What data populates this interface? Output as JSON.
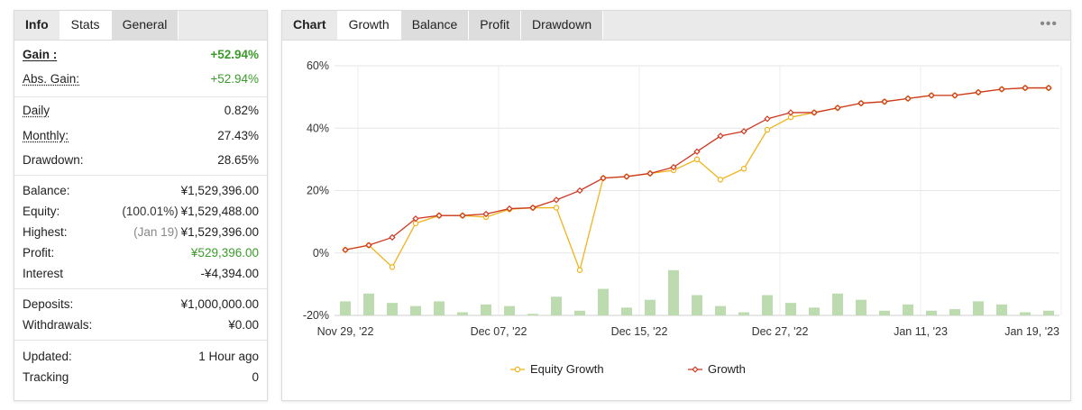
{
  "left_panel": {
    "tabs": [
      "Info",
      "Stats",
      "General"
    ],
    "rows": [
      {
        "label": "Gain :",
        "value": "+52.94%"
      },
      {
        "label": "Abs. Gain:",
        "value": "+52.94%"
      },
      {
        "label": "Daily",
        "value": "0.82%"
      },
      {
        "label": "Monthly:",
        "value": "27.43%"
      },
      {
        "label": "Drawdown:",
        "value": "28.65%"
      },
      {
        "label": "Balance:",
        "value": "¥1,529,396.00"
      },
      {
        "label": "Equity:",
        "sub": "(100.01%)",
        "value": "¥1,529,488.00"
      },
      {
        "label": "Highest:",
        "sub": "(Jan 19)",
        "value": "¥1,529,396.00"
      },
      {
        "label": "Profit:",
        "value": "¥529,396.00"
      },
      {
        "label": "Interest",
        "value": "-¥4,394.00"
      },
      {
        "label": "Deposits:",
        "value": "¥1,000,000.00"
      },
      {
        "label": "Withdrawals:",
        "value": "¥0.00"
      },
      {
        "label": "Updated:",
        "value": "1 Hour ago"
      },
      {
        "label": "Tracking",
        "value": "0"
      }
    ],
    "colors": {
      "positive": "#3b9b2a"
    }
  },
  "right_panel": {
    "tabs": [
      "Chart",
      "Growth",
      "Balance",
      "Profit",
      "Drawdown"
    ],
    "menu_icon": "more-dots-icon"
  },
  "chart_data": {
    "type": "line",
    "y_ticks": [
      "60%",
      "40%",
      "20%",
      "0%",
      "-20%"
    ],
    "ylim": [
      -20,
      60
    ],
    "x_ticks": [
      "Nov 29, '22",
      "Dec 07, '22",
      "Dec 15, '22",
      "Dec 27, '22",
      "Jan 11, '23",
      "Jan 19, '23"
    ],
    "series": [
      {
        "name": "Equity Growth",
        "color": "#f0b41c",
        "values": [
          1,
          2.5,
          -4.5,
          9.5,
          12,
          12,
          11.5,
          14,
          14.5,
          14.5,
          -5.5,
          24,
          24.5,
          25.5,
          26.5,
          30,
          23.5,
          27,
          39.5,
          43.5,
          45,
          46.5,
          48,
          48.5,
          49.5,
          50.5,
          50.5,
          51.5,
          52.5,
          52.9,
          52.9
        ]
      },
      {
        "name": "Growth",
        "color": "#cc3a23",
        "values": [
          1,
          2.5,
          5,
          11,
          12,
          12,
          12.5,
          14.2,
          14.5,
          17,
          20,
          24,
          24.5,
          25.5,
          27.5,
          32.5,
          37.5,
          39,
          43,
          45,
          45,
          46.5,
          48,
          48.5,
          49.5,
          50.5,
          50.5,
          51.5,
          52.5,
          52.9,
          52.9
        ]
      }
    ],
    "bars": {
      "color": "#bcdcb0",
      "values": [
        4.5,
        7,
        4,
        3,
        4.5,
        1,
        3.5,
        3,
        0.5,
        6,
        1.5,
        8.5,
        2.5,
        5,
        14.5,
        6.5,
        3,
        1,
        6.5,
        4,
        2.5,
        7,
        5,
        1.5,
        3.5,
        1.5,
        2,
        4.5,
        3.5,
        1,
        1.5
      ]
    },
    "legend": [
      "Equity Growth",
      "Growth"
    ],
    "legend_placement": "bottom-center",
    "grid": true
  }
}
